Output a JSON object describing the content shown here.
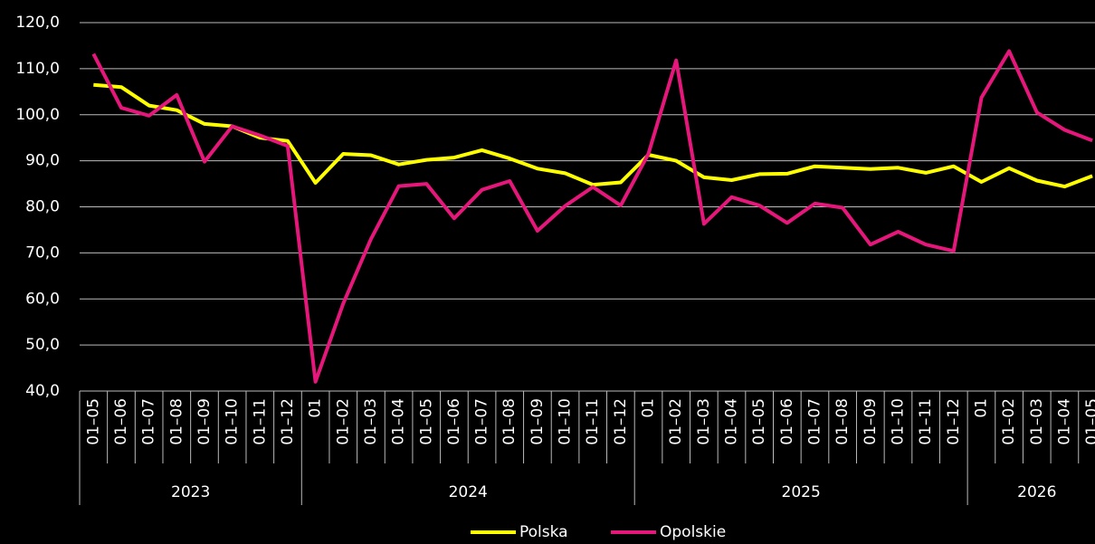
{
  "chart_data": {
    "type": "line",
    "groups": [
      {
        "label": "2023",
        "categories": [
          "01–05",
          "01–06",
          "01–07",
          "01–08",
          "01–09",
          "01–10",
          "01–11",
          "01–12"
        ]
      },
      {
        "label": "2024",
        "categories": [
          "01",
          "01–02",
          "01–03",
          "01–04",
          "01–05",
          "01–06",
          "01–07",
          "01–08",
          "01–09",
          "01–10",
          "01–11",
          "01–12"
        ]
      },
      {
        "label": "2025",
        "categories": [
          "01",
          "01–02",
          "01–03",
          "01–04",
          "01–05",
          "01–06",
          "01–07",
          "01–08",
          "01–09",
          "01–10",
          "01–11",
          "01–12"
        ]
      },
      {
        "label": "2026",
        "categories": [
          "01",
          "01–02",
          "01–03",
          "01–04",
          "01–05"
        ]
      }
    ],
    "series": [
      {
        "name": "Polska",
        "color": "#ffff00",
        "values": [
          106.5,
          106,
          102,
          101,
          98,
          97.5,
          95,
          94.3,
          85.2,
          91.5,
          91.2,
          89.2,
          90.2,
          90.7,
          92.3,
          90.5,
          88.3,
          87.3,
          84.8,
          85.3,
          91.3,
          90,
          86.4,
          85.8,
          87.1,
          87.2,
          88.8,
          88.5,
          88.2,
          88.5,
          87.4,
          88.8,
          85.4,
          88.4,
          85.7,
          84.4,
          86.7
        ]
      },
      {
        "name": "Opolskie",
        "color": "#e5177b",
        "values": [
          113.2,
          101.5,
          99.8,
          104.3,
          89.8,
          97.5,
          95.5,
          93.2,
          42,
          59,
          73,
          84.5,
          85,
          77.5,
          83.7,
          85.6,
          74.8,
          80.2,
          84.3,
          80.3,
          91.5,
          111.8,
          76.3,
          82.1,
          80.3,
          76.5,
          80.7,
          79.8,
          71.8,
          74.6,
          71.8,
          70.4,
          103.7,
          113.8,
          100.5,
          96.7,
          94.4
        ]
      }
    ],
    "ylim": [
      40,
      120
    ],
    "yticks": [
      {
        "value": 40,
        "label": "40,0"
      },
      {
        "value": 50,
        "label": "50,0"
      },
      {
        "value": 60,
        "label": "60,0"
      },
      {
        "value": 70,
        "label": "70,0"
      },
      {
        "value": 80,
        "label": "80,0"
      },
      {
        "value": 90,
        "label": "90,0"
      },
      {
        "value": 100,
        "label": "100,0"
      },
      {
        "value": 110,
        "label": "110,0"
      },
      {
        "value": 120,
        "label": "120,0"
      }
    ],
    "grid": true,
    "legend": "bottom"
  }
}
